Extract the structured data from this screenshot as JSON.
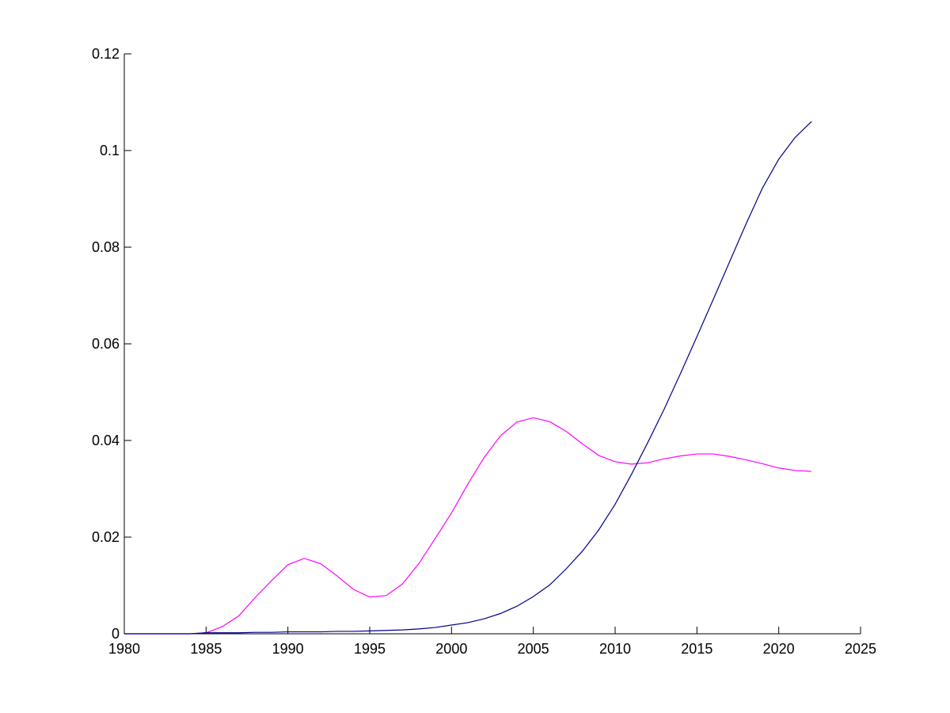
{
  "chart_data": {
    "type": "line",
    "title": "",
    "xlabel": "",
    "ylabel": "",
    "xlim": [
      1980,
      2025
    ],
    "ylim": [
      0,
      0.12
    ],
    "xticks": [
      1980,
      1985,
      1990,
      1995,
      2000,
      2005,
      2010,
      2015,
      2020,
      2025
    ],
    "yticks": [
      0,
      0.02,
      0.04,
      0.06,
      0.08,
      0.1,
      0.12
    ],
    "xtick_labels": [
      "1980",
      "1985",
      "1990",
      "1995",
      "2000",
      "2005",
      "2010",
      "2015",
      "2020",
      "2025"
    ],
    "ytick_labels": [
      "0",
      "0.02",
      "0.04",
      "0.06",
      "0.08",
      "0.1",
      "0.12"
    ],
    "grid": false,
    "legend": "none",
    "x": [
      1980,
      1981,
      1982,
      1983,
      1984,
      1985,
      1986,
      1987,
      1988,
      1989,
      1990,
      1991,
      1992,
      1993,
      1994,
      1995,
      1996,
      1997,
      1998,
      1999,
      2000,
      2001,
      2002,
      2003,
      2004,
      2005,
      2006,
      2007,
      2008,
      2009,
      2010,
      2011,
      2012,
      2013,
      2014,
      2015,
      2016,
      2017,
      2018,
      2019,
      2020,
      2021,
      2022
    ],
    "series": [
      {
        "color": "#ff00ff",
        "values": [
          0,
          0,
          0,
          0,
          0,
          0.0002,
          0.0015,
          0.0037,
          0.0075,
          0.011,
          0.0143,
          0.0156,
          0.0145,
          0.012,
          0.0092,
          0.0076,
          0.0079,
          0.0103,
          0.0145,
          0.0197,
          0.025,
          0.031,
          0.0365,
          0.041,
          0.0438,
          0.0447,
          0.0439,
          0.0419,
          0.0393,
          0.0369,
          0.0356,
          0.0351,
          0.0354,
          0.0362,
          0.0368,
          0.0372,
          0.0372,
          0.0367,
          0.036,
          0.0352,
          0.0343,
          0.0338,
          0.0336
        ]
      },
      {
        "color": "#00008b",
        "values": [
          0,
          0,
          0,
          0,
          0,
          0.0002,
          0.0002,
          0.0002,
          0.0003,
          0.0003,
          0.0004,
          0.0004,
          0.0004,
          0.0005,
          0.0005,
          0.0006,
          0.0007,
          0.0008,
          0.001,
          0.0013,
          0.0018,
          0.0023,
          0.0031,
          0.0042,
          0.0057,
          0.0077,
          0.0101,
          0.0134,
          0.0171,
          0.0215,
          0.0268,
          0.033,
          0.0396,
          0.0465,
          0.0539,
          0.0615,
          0.0692,
          0.077,
          0.0848,
          0.0922,
          0.0982,
          0.1027,
          0.106
        ]
      }
    ]
  }
}
